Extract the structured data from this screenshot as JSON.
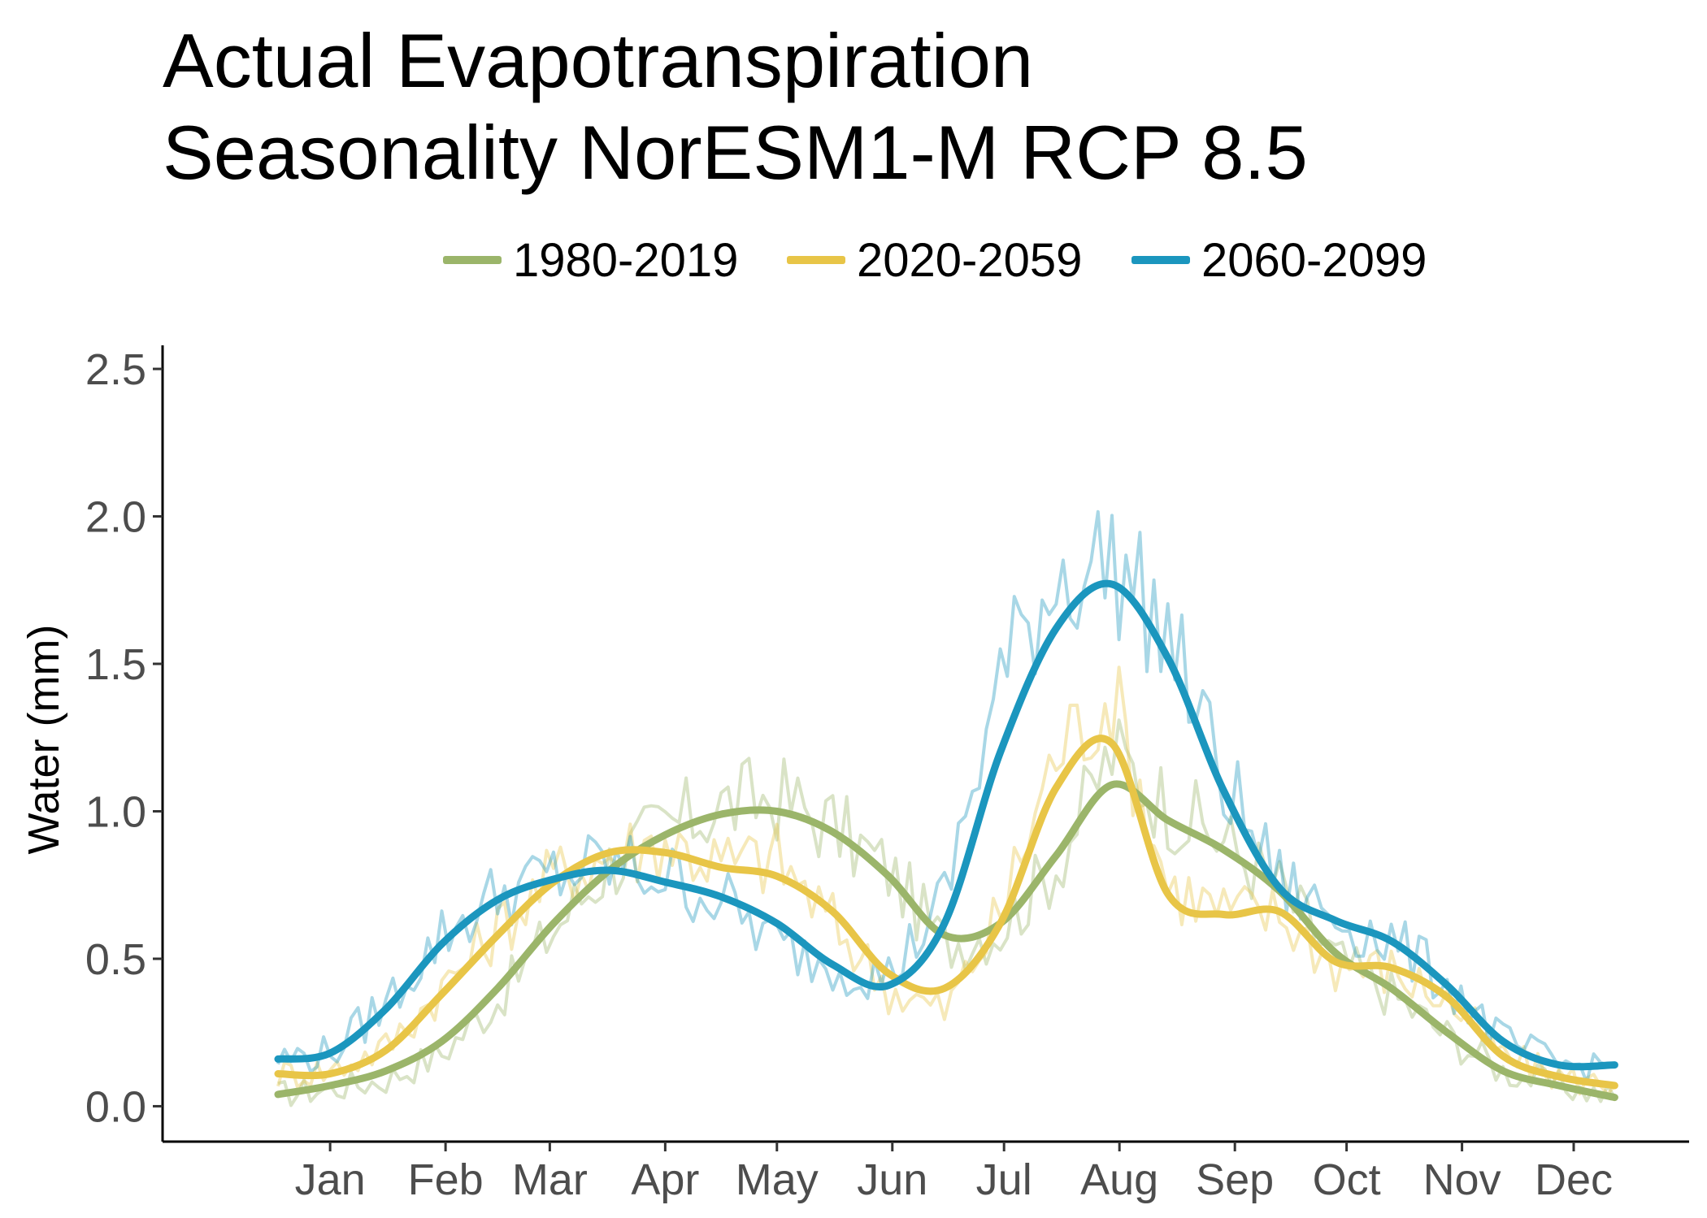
{
  "chart_data": {
    "type": "line",
    "title_lines": [
      "Actual Evapotranspiration",
      "Seasonality NorESM1-M RCP 8.5"
    ],
    "xlabel": "",
    "ylabel": "Water (mm)",
    "x_ticks": [
      "Jan",
      "Feb",
      "Mar",
      "Apr",
      "May",
      "Jun",
      "Jul",
      "Aug",
      "Sep",
      "Oct",
      "Nov",
      "Dec"
    ],
    "y_ticks": [
      "0.0",
      "0.5",
      "1.0",
      "1.5",
      "2.0",
      "2.5"
    ],
    "ylim": [
      -0.12,
      2.58
    ],
    "xlim_day": [
      -30,
      380
    ],
    "grid": false,
    "legend_position": "top",
    "x_day": [
      1,
      15,
      30,
      45,
      60,
      75,
      90,
      105,
      120,
      135,
      150,
      165,
      180,
      195,
      210,
      225,
      240,
      255,
      270,
      285,
      300,
      315,
      330,
      345,
      360
    ],
    "series": [
      {
        "name": "1980-2019",
        "color": "#9bb56a",
        "smooth": [
          0.04,
          0.07,
          0.12,
          0.22,
          0.4,
          0.62,
          0.8,
          0.92,
          0.99,
          1.0,
          0.93,
          0.78,
          0.58,
          0.62,
          0.85,
          1.09,
          0.97,
          0.87,
          0.73,
          0.52,
          0.4,
          0.25,
          0.12,
          0.07,
          0.03
        ],
        "raw": [
          0.04,
          0.06,
          0.09,
          0.18,
          0.36,
          0.6,
          0.82,
          0.94,
          1.02,
          1.05,
          0.95,
          0.8,
          0.55,
          0.6,
          0.82,
          1.2,
          1.02,
          0.9,
          0.74,
          0.5,
          0.38,
          0.24,
          0.12,
          0.07,
          0.03
        ]
      },
      {
        "name": "2020-2059",
        "color": "#e8c547",
        "smooth": [
          0.11,
          0.11,
          0.19,
          0.38,
          0.58,
          0.76,
          0.86,
          0.86,
          0.81,
          0.78,
          0.66,
          0.45,
          0.4,
          0.62,
          1.08,
          1.23,
          0.72,
          0.65,
          0.66,
          0.49,
          0.47,
          0.37,
          0.17,
          0.1,
          0.07
        ],
        "raw": [
          0.11,
          0.12,
          0.2,
          0.4,
          0.6,
          0.78,
          0.85,
          0.9,
          0.82,
          0.84,
          0.62,
          0.4,
          0.32,
          0.65,
          1.2,
          1.4,
          0.75,
          0.66,
          0.65,
          0.48,
          0.46,
          0.36,
          0.17,
          0.1,
          0.07
        ]
      },
      {
        "name": "2060-2099",
        "color": "#1b96be",
        "smooth": [
          0.16,
          0.18,
          0.33,
          0.55,
          0.7,
          0.77,
          0.8,
          0.76,
          0.71,
          0.62,
          0.48,
          0.41,
          0.62,
          1.2,
          1.62,
          1.77,
          1.52,
          1.07,
          0.74,
          0.63,
          0.56,
          0.41,
          0.22,
          0.14,
          0.14
        ],
        "raw": [
          0.16,
          0.18,
          0.35,
          0.58,
          0.72,
          0.78,
          0.82,
          0.78,
          0.7,
          0.55,
          0.48,
          0.44,
          0.7,
          1.45,
          1.8,
          1.85,
          1.6,
          1.1,
          0.76,
          0.64,
          0.56,
          0.42,
          0.22,
          0.14,
          0.14
        ]
      }
    ]
  }
}
